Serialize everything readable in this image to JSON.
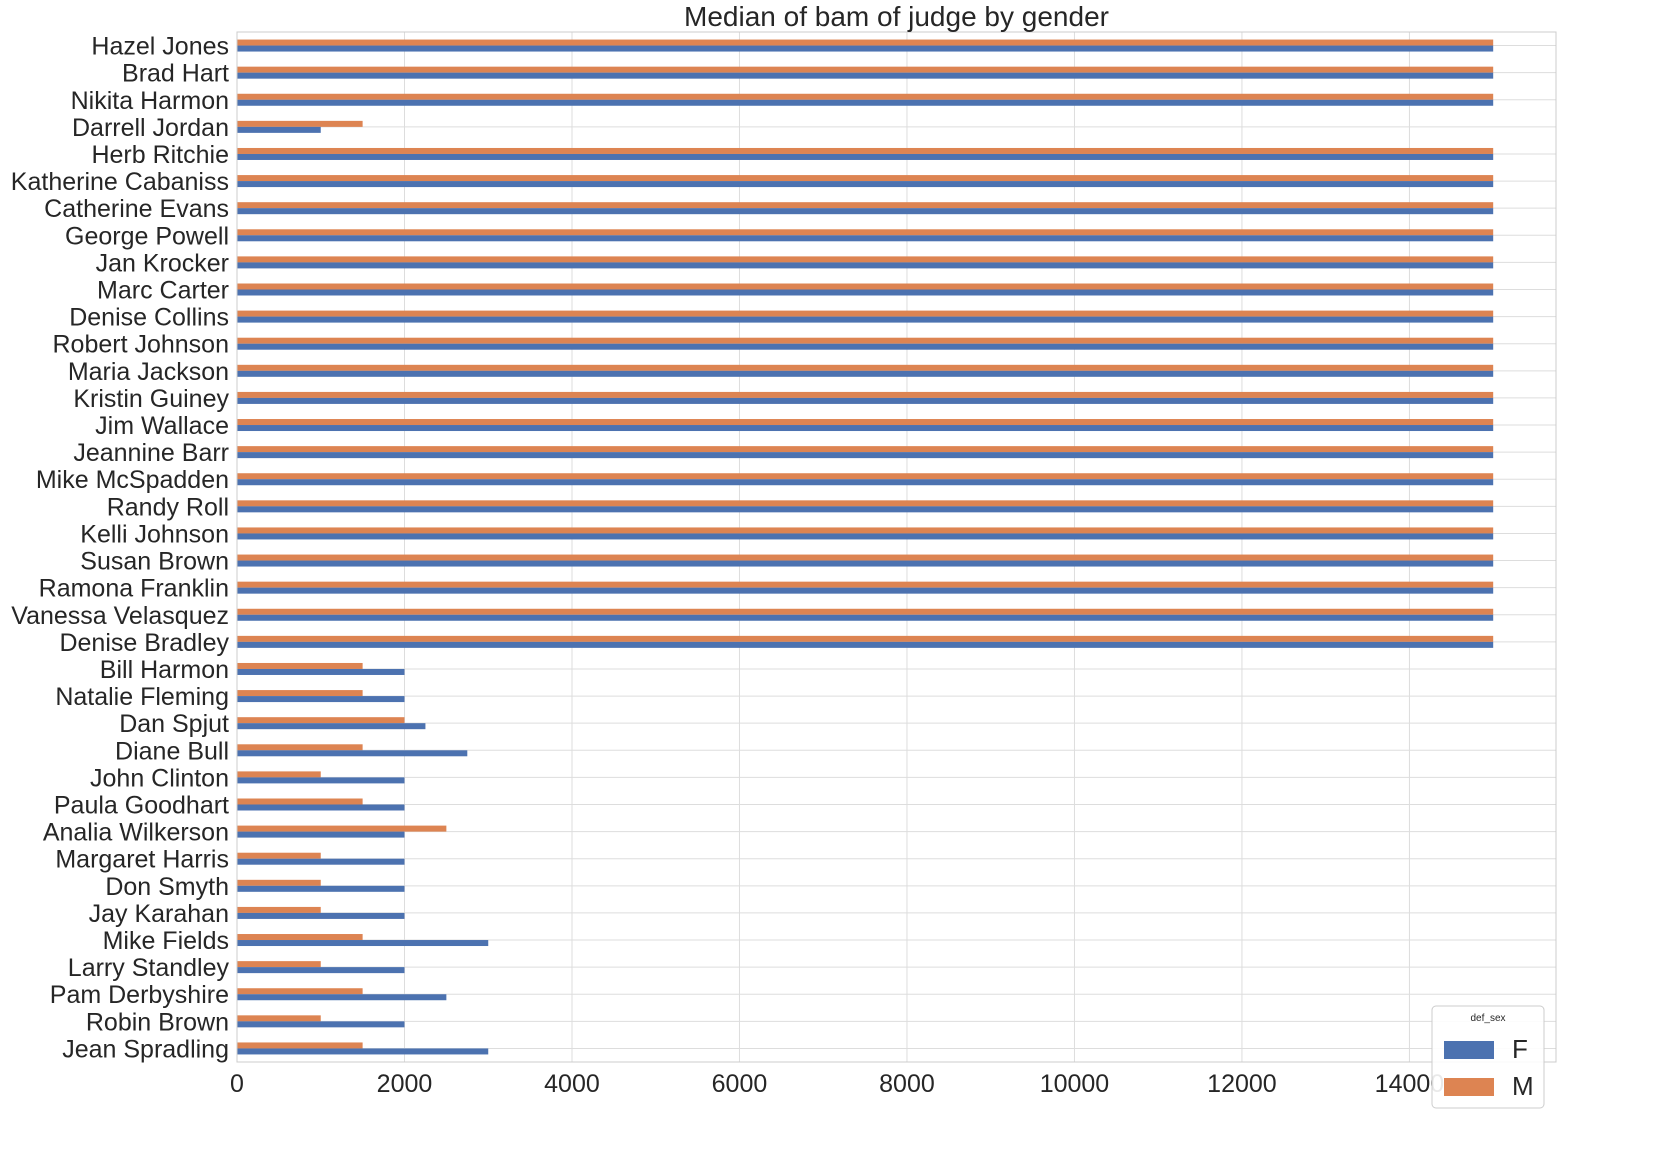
{
  "chart_data": {
    "type": "bar",
    "orientation": "horizontal",
    "title": "Median of bam of judge by gender",
    "xlabel": "",
    "ylabel": "",
    "xlim": [
      0,
      15750
    ],
    "xticks": [
      0,
      2000,
      4000,
      6000,
      8000,
      10000,
      12000,
      14000
    ],
    "grid": true,
    "legend": {
      "title": "def_sex",
      "placement": "bottom-right"
    },
    "categories": [
      "Hazel Jones",
      "Brad Hart",
      "Nikita Harmon",
      "Darrell Jordan",
      "Herb Ritchie",
      "Katherine Cabaniss",
      "Catherine Evans",
      "George Powell",
      "Jan Krocker",
      "Marc Carter",
      "Denise Collins",
      "Robert Johnson",
      "Maria Jackson",
      "Kristin Guiney",
      "Jim Wallace",
      "Jeannine Barr",
      "Mike McSpadden",
      "Randy Roll",
      "Kelli Johnson",
      "Susan Brown",
      "Ramona Franklin",
      "Vanessa Velasquez",
      "Denise Bradley",
      "Bill Harmon",
      "Natalie Fleming",
      "Dan Spjut",
      "Diane Bull",
      "John Clinton",
      "Paula Goodhart",
      "Analia Wilkerson",
      "Margaret Harris",
      "Don Smyth",
      "Jay Karahan",
      "Mike Fields",
      "Larry Standley",
      "Pam Derbyshire",
      "Robin Brown",
      "Jean Spradling"
    ],
    "series": [
      {
        "name": "F",
        "color": "#4c72b0",
        "values": [
          15000,
          15000,
          15000,
          1000,
          15000,
          15000,
          15000,
          15000,
          15000,
          15000,
          15000,
          15000,
          15000,
          15000,
          15000,
          15000,
          15000,
          15000,
          15000,
          15000,
          15000,
          15000,
          15000,
          2000,
          2000,
          2250,
          2750,
          2000,
          2000,
          2000,
          2000,
          2000,
          2000,
          3000,
          2000,
          2500,
          2000,
          3000
        ]
      },
      {
        "name": "M",
        "color": "#dd8452",
        "values": [
          15000,
          15000,
          15000,
          1500,
          15000,
          15000,
          15000,
          15000,
          15000,
          15000,
          15000,
          15000,
          15000,
          15000,
          15000,
          15000,
          15000,
          15000,
          15000,
          15000,
          15000,
          15000,
          15000,
          1500,
          1500,
          2000,
          1500,
          1000,
          1500,
          2500,
          1000,
          1000,
          1000,
          1500,
          1000,
          1500,
          1000,
          1500
        ]
      }
    ]
  }
}
